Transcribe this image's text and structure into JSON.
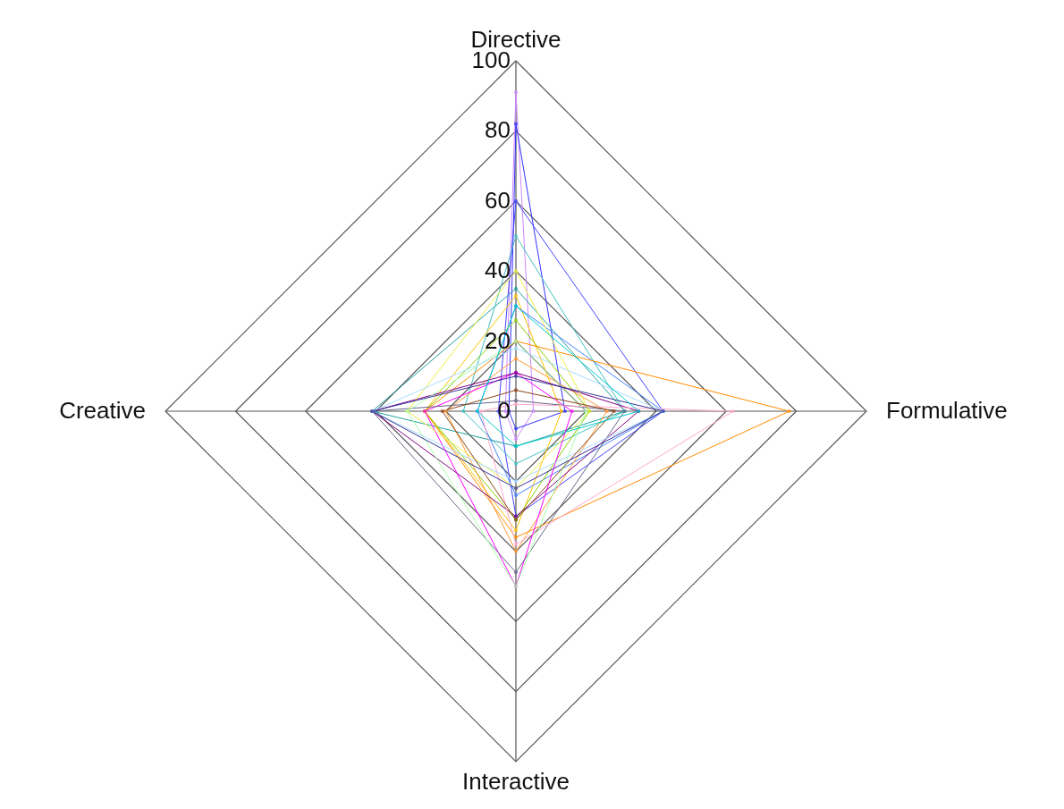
{
  "chart_data": {
    "type": "radar",
    "categories": [
      "Directive",
      "Formulative",
      "Interactive",
      "Creative"
    ],
    "ylim": [
      0,
      100
    ],
    "yticks": [
      0,
      20,
      40,
      60,
      80,
      100
    ],
    "grid": true,
    "legend": false,
    "marker": "circle",
    "line_style": "solid",
    "series": [
      {
        "color": "#cc88ff",
        "values": [
          91,
          5,
          8,
          3
        ]
      },
      {
        "color": "#3333ff",
        "values": [
          82,
          14,
          5,
          2
        ]
      },
      {
        "color": "#4444ff",
        "values": [
          60,
          42,
          30,
          5
        ]
      },
      {
        "color": "#40c0c0",
        "values": [
          50,
          31,
          15,
          15
        ]
      },
      {
        "color": "#20a0a0",
        "values": [
          35,
          31,
          10,
          41
        ]
      },
      {
        "color": "#ffc000",
        "values": [
          33,
          13,
          34,
          26
        ]
      },
      {
        "color": "#4080ff",
        "values": [
          30,
          42,
          24,
          11
        ]
      },
      {
        "color": "#88cc00",
        "values": [
          26,
          21,
          31,
          26
        ]
      },
      {
        "color": "#ff8c00",
        "values": [
          20,
          78,
          36,
          26
        ]
      },
      {
        "color": "#ff9933",
        "values": [
          15,
          26,
          40,
          20
        ]
      },
      {
        "color": "#ff00ff",
        "values": [
          11,
          16,
          50,
          26
        ]
      },
      {
        "color": "#800080",
        "values": [
          11,
          35,
          30,
          41
        ]
      },
      {
        "color": "#666688",
        "values": [
          3,
          31,
          46,
          41
        ]
      },
      {
        "color": "#eeee44",
        "values": [
          40,
          21,
          22,
          31
        ]
      },
      {
        "color": "#ffaacc",
        "values": [
          2,
          62,
          38,
          10
        ]
      },
      {
        "color": "#aaffaa",
        "values": [
          20,
          20,
          50,
          31
        ]
      },
      {
        "color": "#aaddff",
        "values": [
          18,
          42,
          20,
          41
        ]
      },
      {
        "color": "#8b4513",
        "values": [
          6,
          28,
          31,
          21
        ]
      },
      {
        "color": "#333399",
        "values": [
          10,
          42,
          22,
          41
        ]
      },
      {
        "color": "#00cccc",
        "values": [
          30,
          35,
          10,
          11
        ]
      }
    ]
  }
}
